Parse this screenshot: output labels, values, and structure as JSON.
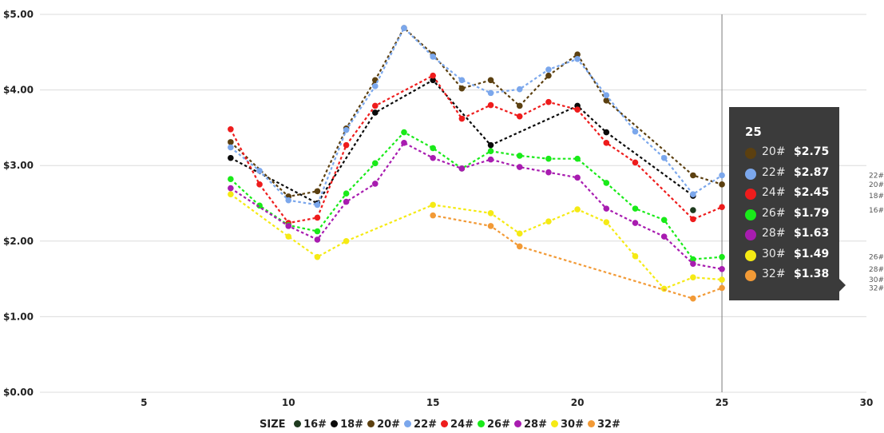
{
  "chart_data": {
    "type": "line",
    "legend_title": "SIZE",
    "x": [
      8,
      9,
      10,
      11,
      12,
      13,
      14,
      15,
      16,
      17,
      18,
      19,
      20,
      21,
      22,
      23,
      24,
      25
    ],
    "xticks": [
      5,
      10,
      15,
      20,
      25,
      30
    ],
    "xlim": [
      1.4,
      30
    ],
    "ylim": [
      0,
      5
    ],
    "yticks": [
      0,
      1,
      2,
      3,
      4,
      5
    ],
    "ytick_labels": [
      "$0.00",
      "$1.00",
      "$2.00",
      "$3.00",
      "$4.00",
      "$5.00"
    ],
    "grid": true,
    "legend_position": "bottom",
    "crosshair_x": 25,
    "series": [
      {
        "name": "16#",
        "color": "#1e3a1e",
        "values": [
          null,
          null,
          null,
          null,
          null,
          null,
          null,
          null,
          null,
          null,
          null,
          null,
          null,
          null,
          null,
          null,
          2.41,
          null
        ]
      },
      {
        "name": "18#",
        "color": "#0a0a0a",
        "values": [
          3.1,
          null,
          null,
          2.5,
          null,
          3.7,
          null,
          4.13,
          null,
          3.27,
          null,
          null,
          3.79,
          3.44,
          null,
          null,
          2.6,
          null
        ]
      },
      {
        "name": "20#",
        "color": "#5c4010",
        "values": [
          3.31,
          null,
          2.59,
          2.66,
          3.49,
          4.13,
          4.82,
          4.47,
          4.02,
          4.13,
          3.79,
          4.19,
          4.47,
          3.86,
          null,
          null,
          2.87,
          2.75
        ]
      },
      {
        "name": "22#",
        "color": "#7ba7ec",
        "values": [
          3.24,
          2.93,
          2.54,
          2.48,
          3.47,
          4.05,
          4.82,
          4.44,
          4.13,
          3.96,
          4.01,
          4.27,
          4.41,
          3.93,
          3.45,
          3.1,
          2.62,
          2.87
        ]
      },
      {
        "name": "24#",
        "color": "#ee1c1c",
        "values": [
          3.48,
          2.75,
          2.24,
          2.31,
          3.27,
          3.79,
          null,
          4.19,
          3.62,
          3.8,
          3.65,
          3.84,
          3.74,
          3.3,
          3.04,
          null,
          2.29,
          2.45
        ]
      },
      {
        "name": "26#",
        "color": "#19ea19",
        "values": [
          2.82,
          2.47,
          2.21,
          2.13,
          2.63,
          3.03,
          3.44,
          3.23,
          2.96,
          3.19,
          3.13,
          3.09,
          3.09,
          2.77,
          2.43,
          2.28,
          1.76,
          1.79
        ]
      },
      {
        "name": "28#",
        "color": "#a81cb0",
        "values": [
          2.7,
          null,
          2.2,
          2.02,
          2.52,
          2.76,
          3.3,
          3.1,
          2.96,
          3.08,
          2.98,
          2.91,
          2.84,
          2.43,
          2.24,
          2.06,
          1.7,
          1.63
        ]
      },
      {
        "name": "30#",
        "color": "#f5ea14",
        "values": [
          2.62,
          null,
          2.06,
          1.79,
          2.0,
          null,
          null,
          2.48,
          null,
          2.37,
          2.1,
          2.26,
          2.42,
          2.25,
          1.8,
          1.37,
          1.52,
          1.49
        ]
      },
      {
        "name": "32#",
        "color": "#f29a36",
        "values": [
          null,
          null,
          null,
          null,
          null,
          null,
          null,
          2.34,
          null,
          2.2,
          1.93,
          null,
          null,
          null,
          null,
          null,
          1.24,
          1.38
        ]
      }
    ],
    "end_labels": [
      {
        "text": "22#",
        "y": 2.87
      },
      {
        "text": "20#",
        "y": 2.75
      },
      {
        "text": "18#",
        "y": 2.6
      },
      {
        "text": "16#",
        "y": 2.41
      },
      {
        "text": "26#",
        "y": 1.79
      },
      {
        "text": "28#",
        "y": 1.63
      },
      {
        "text": "30#",
        "y": 1.49
      },
      {
        "text": "32#",
        "y": 1.38
      }
    ]
  },
  "tooltip": {
    "title": "25",
    "rows": [
      {
        "name": "20#",
        "value": "$2.75",
        "color": "#5c4010"
      },
      {
        "name": "22#",
        "value": "$2.87",
        "color": "#7ba7ec"
      },
      {
        "name": "24#",
        "value": "$2.45",
        "color": "#ee1c1c"
      },
      {
        "name": "26#",
        "value": "$1.79",
        "color": "#19ea19"
      },
      {
        "name": "28#",
        "value": "$1.63",
        "color": "#a81cb0"
      },
      {
        "name": "30#",
        "value": "$1.49",
        "color": "#f5ea14"
      },
      {
        "name": "32#",
        "value": "$1.38",
        "color": "#f29a36"
      }
    ]
  }
}
